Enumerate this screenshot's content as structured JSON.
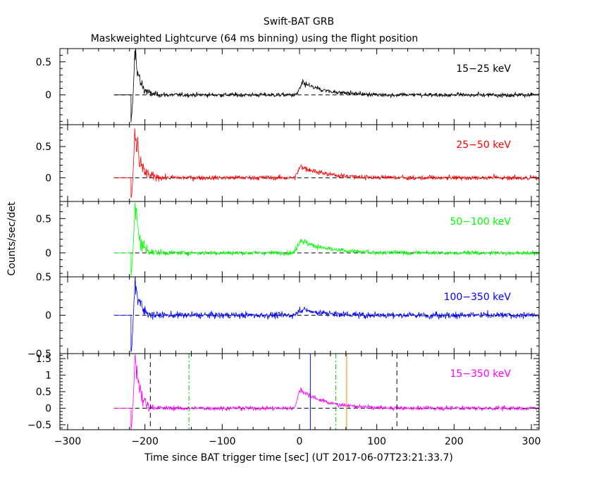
{
  "title": "Swift-BAT GRB",
  "subtitle": "Maskweighted Lightcurve (64 ms binning) using the flight position",
  "ylabel": "Counts/sec/det",
  "xlabel": "Time since BAT trigger time [sec] (UT 2017-06-07T23:21:33.7)",
  "colors": {
    "axes": "#000000",
    "background": "#ffffff",
    "band1": "#000000",
    "band2": "#ff0000",
    "band3": "#00ff00",
    "band4": "#0000ff",
    "band5": "#ff00ff",
    "t90_line": "#00cc00",
    "t50_line": "#0000ff",
    "t100_line": "#ff8c00"
  },
  "chart_data": {
    "type": "line",
    "xlim": [
      -310,
      310
    ],
    "x_ticks": [
      -300,
      -200,
      -100,
      0,
      100,
      200,
      300
    ],
    "x_tick_labels": [
      "−300",
      "−200",
      "−100",
      "0",
      "100",
      "200",
      "300"
    ],
    "data_start": -240,
    "signal_start": -218,
    "panels": [
      {
        "name": "15-25 keV",
        "label": "15−25 keV",
        "color": "#000000",
        "ylim": [
          -0.45,
          0.7
        ],
        "y_ticks": [
          0,
          0.5
        ],
        "y_tick_labels": [
          "0",
          "0.5"
        ],
        "initial_spike": {
          "t": -213,
          "peak": 0.68,
          "decay": 0.38,
          "dip": -0.42
        },
        "bump": {
          "t": 4,
          "peak": 0.18,
          "decay": 0.16
        },
        "noise": 0.035,
        "vlines": []
      },
      {
        "name": "25-50 keV",
        "label": "25−50 keV",
        "color": "#ff0000",
        "ylim": [
          -0.38,
          0.85
        ],
        "y_ticks": [
          0,
          0.5
        ],
        "y_tick_labels": [
          "0",
          "0.5"
        ],
        "initial_spike": {
          "t": -213,
          "peak": 0.78,
          "decay": 0.5,
          "dip": -0.35
        },
        "bump": {
          "t": 2,
          "peak": 0.19,
          "decay": 0.16
        },
        "noise": 0.04,
        "vlines": []
      },
      {
        "name": "50-100 keV",
        "label": "50−100 keV",
        "color": "#00ff00",
        "ylim": [
          -0.35,
          0.75
        ],
        "y_ticks": [
          0,
          0.5
        ],
        "y_tick_labels": [
          "0",
          "0.5"
        ],
        "initial_spike": {
          "t": -213,
          "peak": 0.68,
          "decay": 0.42,
          "dip": -0.32
        },
        "bump": {
          "t": 1,
          "peak": 0.19,
          "decay": 0.18
        },
        "noise": 0.035,
        "vlines": []
      },
      {
        "name": "100-350 keV",
        "label": "100−350 keV",
        "color": "#0000ff",
        "ylim": [
          -0.5,
          0.5
        ],
        "y_ticks": [
          -0.5,
          0,
          0.5
        ],
        "y_tick_labels": [
          "−0.5",
          "0",
          "0.5"
        ],
        "initial_spike": {
          "t": -213,
          "peak": 0.45,
          "decay": 0.25,
          "dip": -0.48
        },
        "bump": {
          "t": 1,
          "peak": 0.08,
          "decay": 0.1
        },
        "noise": 0.045,
        "vlines": []
      },
      {
        "name": "15-350 keV",
        "label": "15−350 keV",
        "color": "#ff00ff",
        "ylim": [
          -0.65,
          1.65
        ],
        "y_ticks": [
          -0.5,
          0,
          0.5,
          1,
          1.5
        ],
        "y_tick_labels": [
          "−0.5",
          "0",
          "0.5",
          "1",
          "1.5"
        ],
        "initial_spike": {
          "t": -213,
          "peak": 1.55,
          "decay": 0.8,
          "dip": -0.62
        },
        "bump": {
          "t": 1,
          "peak": 0.58,
          "decay": 0.3
        },
        "noise": 0.07,
        "vlines": [
          {
            "t": -193,
            "color": "#000000",
            "style": "dash"
          },
          {
            "t": -143,
            "color": "#00cc00",
            "style": "dashdot"
          },
          {
            "t": 14,
            "color": "#0000ff",
            "style": "solid"
          },
          {
            "t": 47,
            "color": "#00cc00",
            "style": "dashdot"
          },
          {
            "t": 61,
            "color": "#ff8c00",
            "style": "solid"
          },
          {
            "t": 126,
            "color": "#000000",
            "style": "dash"
          }
        ]
      }
    ]
  }
}
